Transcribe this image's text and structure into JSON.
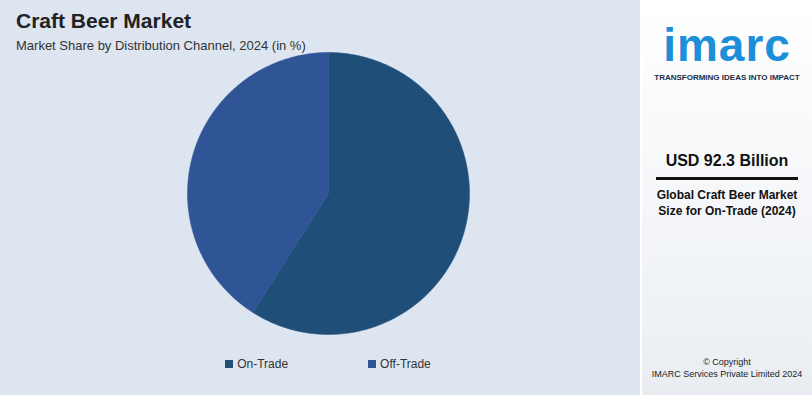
{
  "chart_data": {
    "type": "pie",
    "title": "Craft Beer Market",
    "subtitle": "Market Share by Distribution Channel, 2024 (in %)",
    "categories": [
      "On-Trade",
      "Off-Trade"
    ],
    "values": [
      59,
      41
    ],
    "colors": [
      "#1f4e79",
      "#2f5597"
    ],
    "legend": "bottom",
    "tick_labels": false,
    "side_panel": {
      "logo": "imarc",
      "tagline": "TRANSFORMING IDEAS INTO IMPACT",
      "value": "USD 92.3 Billion",
      "caption": "Global Craft Beer Market Size for On-Trade (2024)",
      "copyright": [
        "© Copyright",
        "IMARC Services Private Limited 2024"
      ]
    }
  }
}
